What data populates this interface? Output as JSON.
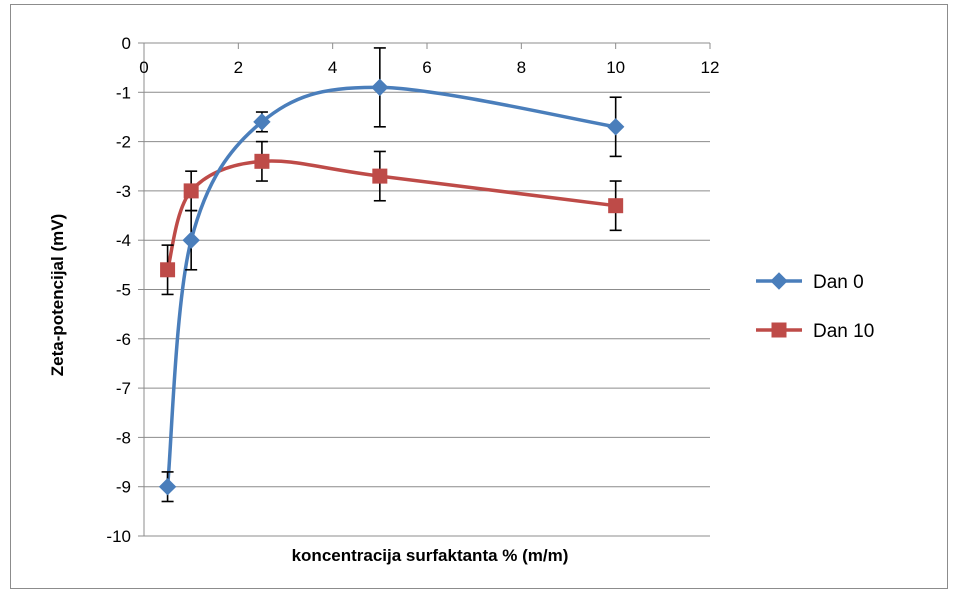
{
  "chart_data": {
    "type": "line",
    "title": "",
    "xlabel": "koncentracija surfaktanta % (m/m)",
    "ylabel": "Zeta-potencijal (mV)",
    "xlim": [
      0,
      12
    ],
    "ylim": [
      -10,
      0
    ],
    "xticks": [
      "0",
      "2",
      "4",
      "6",
      "8",
      "10",
      "12"
    ],
    "yticks": [
      "0",
      "-1",
      "-2",
      "-3",
      "-4",
      "-5",
      "-6",
      "-7",
      "-8",
      "-9",
      "-10"
    ],
    "grid": "horizontal",
    "legend_position": "right",
    "smoothed": true,
    "error_bars": true,
    "series": [
      {
        "name": "Dan 0",
        "color": "#4a7ebb",
        "marker": "diamond",
        "x": [
          0.5,
          1,
          2.5,
          5,
          10
        ],
        "y": [
          -9.0,
          -4.0,
          -1.6,
          -0.9,
          -1.7
        ],
        "error": [
          0.3,
          0.6,
          0.2,
          0.8,
          0.6
        ]
      },
      {
        "name": "Dan 10",
        "color": "#be4b48",
        "marker": "square",
        "x": [
          0.5,
          1,
          2.5,
          5,
          10
        ],
        "y": [
          -4.6,
          -3.0,
          -2.4,
          -2.7,
          -3.3
        ],
        "error": [
          0.5,
          0.4,
          0.4,
          0.5,
          0.5
        ]
      }
    ]
  }
}
